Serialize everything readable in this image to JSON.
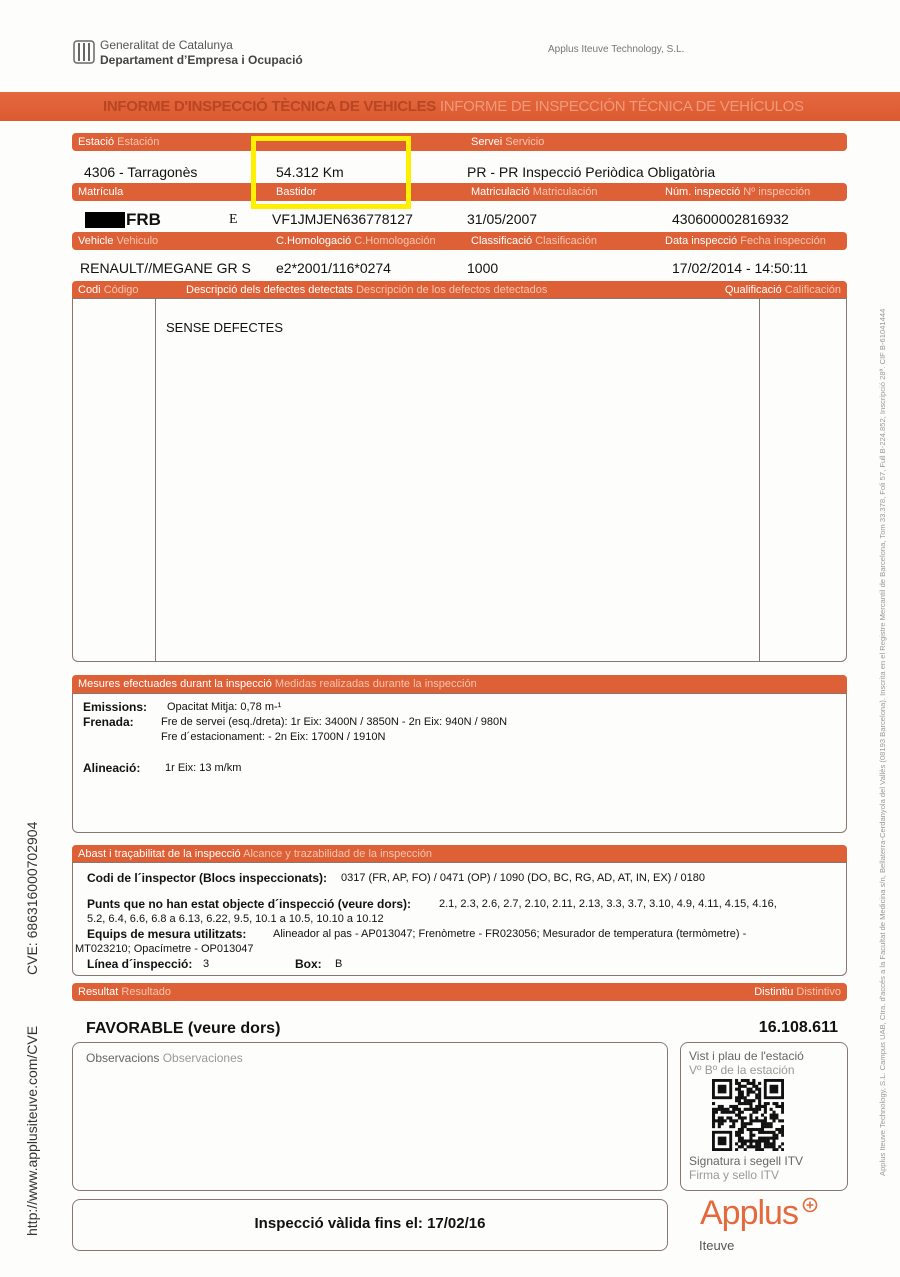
{
  "header": {
    "org_line1": "Generalitat de Catalunya",
    "org_line2": "Departament d’Empresa i Ocupació",
    "company": "Applus Iteuve Technology, S.L.",
    "title_ca": "INFORME D'INSPECCIÓ TÈCNICA DE VEHICLES",
    "title_es": "INFORME DE INSPECCIÓN TÉCNICA DE VEHÍCULOS"
  },
  "colors": {
    "accent": "#de6036",
    "highlight": "#ffef00"
  },
  "rows": [
    {
      "labels": [
        [
          "Estació",
          "Estación"
        ],
        [
          "",
          ""
        ],
        [
          "Servei",
          "Servicio"
        ],
        [
          "",
          ""
        ]
      ],
      "values": [
        "4306 - Tarragonès",
        "54.312 Km",
        "PR - PR Inspecció Periòdica Obligatòria",
        ""
      ]
    },
    {
      "labels": [
        [
          "Matrícula",
          ""
        ],
        [
          "Bastidor",
          ""
        ],
        [
          "Matriculació",
          "Matriculación"
        ],
        [
          "Núm. inspecció",
          "Nº inspección"
        ]
      ],
      "values": [
        "FRB",
        "VF1JMJEN636778127",
        "31/05/2007",
        "430600002816932"
      ],
      "plate_suffix": "E"
    },
    {
      "labels": [
        [
          "Vehicle",
          "Vehiculo"
        ],
        [
          "C.Homologació",
          "C.Homologación"
        ],
        [
          "Classificació",
          "Clasificación"
        ],
        [
          "Data inspecció",
          "Fecha inspección"
        ]
      ],
      "values": [
        "RENAULT//MEGANE GR S",
        "e2*2001/116*0274",
        "1000",
        "17/02/2014 - 14:50:11"
      ]
    }
  ],
  "defects": {
    "col_code": [
      "Codi",
      "Código"
    ],
    "col_desc": [
      "Descripció dels defectes detectats",
      "Descripción de los defectos detectados"
    ],
    "col_qual": [
      "Qualificació",
      "Calificación"
    ],
    "text": "SENSE DEFECTES"
  },
  "measures": {
    "title": [
      "Mesures efectuades durant la inspecció",
      "Medidas realizadas durante la inspección"
    ],
    "emissions_label": "Emissions:",
    "emissions": "Opacitat Mitja: 0,78 m-¹",
    "brake_label": "Frenada:",
    "brake_service": "Fre de servei (esq./dreta): 1r Eix: 3400N / 3850N - 2n Eix: 940N / 980N",
    "brake_parking": "Fre d´estacionament:  - 2n Eix: 1700N / 1910N",
    "align_label": "Alineació:",
    "align": "1r Eix: 13 m/km"
  },
  "scope": {
    "title": [
      "Abast i traçabilitat de la inspecció",
      "Alcance y trazabilidad de la inspección"
    ],
    "inspector_label": "Codi de l´inspector (Blocs inspeccionats):",
    "inspector": "0317 (FR, AP, FO) / 0471 (OP) / 1090 (DO, BC, RG, AD, AT, IN, EX)  / 0180",
    "points_label": "Punts que no han estat objecte d´inspecció (veure dors):",
    "points_1": "2.1, 2.3, 2.6, 2.7, 2.10, 2.11, 2.13, 3.3, 3.7, 3.10, 4.9, 4.11, 4.15, 4.16,",
    "points_2": "5.2, 6.4, 6.6, 6.8 a 6.13, 6.22, 9.5, 10.1 a 10.5, 10.10 a 10.12",
    "equip_label": "Equips de mesura utilitzats:",
    "equip_1": "Alineador al pas - AP013047; Frenòmetre - FR023056; Mesurador de temperatura  (termòmetre) -",
    "equip_2": "MT023210; Opacímetre - OP013047",
    "line_label": "Línea d´inspecció:",
    "line": "3",
    "box_label": "Box:",
    "box": "B"
  },
  "result": {
    "title": [
      "Resultat",
      "Resultado"
    ],
    "badge_title": [
      "Distintiu",
      "Distintivo"
    ],
    "value": "FAVORABLE (veure dors)",
    "badge": "16.108.611",
    "obs": [
      "Observacions",
      "Observaciones"
    ],
    "stamp_1": "Vist i plau de l'estació",
    "stamp_2": "Vº Bº de la estación",
    "sign_1": "Signatura i segell ITV",
    "sign_2": "Firma y sello ITV",
    "validity": "Inspecció vàlida fins el: 17/02/16",
    "logo": "Applus",
    "logo_sub": "Iteuve"
  },
  "side": {
    "cve": "CVE: 686316000702904",
    "url": "http://www.applusiteuve.com/CVE",
    "legal": "Applus Iteuve Technology, S.L. Campus UAB, Ctra. d'accés a la Facultat de Medicina s/n, Bellaterra-Cerdanyola del Vallès (08193 Barcelona). Inscrita en el Registre Mercantil de Barcelona, Tom 33.378, Foli 57, Full B-224.852, Inscripció 28ª. CIF B-61041444"
  }
}
